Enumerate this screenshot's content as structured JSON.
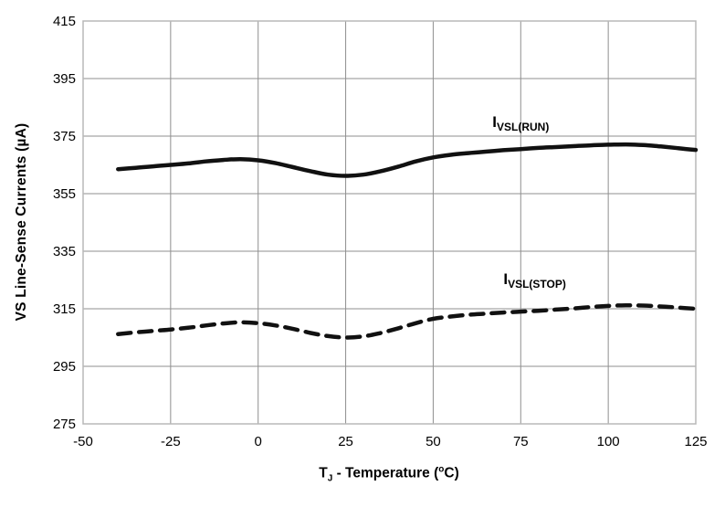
{
  "figure": {
    "background": "#ffffff",
    "grid_color": "#8f8f8f",
    "border_color": "#b8b8b8",
    "line_color": "#111111",
    "text_color": "#000000"
  },
  "chart_data": {
    "type": "line",
    "title": "",
    "xlabel": "TJ - Temperature (°C)",
    "ylabel": "VS Line-Sense Currents (µA)",
    "xlim": [
      -50,
      125
    ],
    "ylim": [
      275,
      415
    ],
    "xticks": [
      -50,
      -25,
      0,
      25,
      50,
      75,
      100,
      125
    ],
    "yticks": [
      275,
      295,
      315,
      335,
      355,
      375,
      395,
      415
    ],
    "grid": true,
    "legend_position": "inline-annotations",
    "x": [
      -40,
      -35,
      -30,
      -25,
      -20,
      -15,
      -10,
      -5,
      0,
      5,
      10,
      15,
      20,
      25,
      30,
      35,
      40,
      45,
      50,
      55,
      60,
      65,
      70,
      75,
      80,
      85,
      90,
      95,
      100,
      105,
      110,
      115,
      120,
      125
    ],
    "series": [
      {
        "name": "IVSL(RUN)",
        "label": {
          "main": "I",
          "sub": "VSL(RUN)"
        },
        "style": "solid",
        "color": "#111111",
        "annotation_pos": {
          "x": 75,
          "y": 379.5
        },
        "values": [
          363.5,
          364,
          364.5,
          365,
          365.5,
          366.2,
          366.7,
          367,
          366.6,
          365.6,
          364.2,
          362.8,
          361.6,
          361.2,
          361.6,
          362.8,
          364.4,
          366.2,
          367.6,
          368.5,
          369.1,
          369.6,
          370.1,
          370.5,
          370.9,
          371.2,
          371.5,
          371.8,
          372,
          372.1,
          371.9,
          371.4,
          370.8,
          370.2
        ]
      },
      {
        "name": "IVSL(STOP)",
        "label": {
          "main": "I",
          "sub": "VSL(STOP)"
        },
        "style": "dashed",
        "color": "#111111",
        "annotation_pos": {
          "x": 79,
          "y": 325
        },
        "values": [
          306.2,
          306.8,
          307.3,
          307.8,
          308.4,
          309.2,
          309.9,
          310.3,
          310,
          309.2,
          308,
          306.6,
          305.5,
          305,
          305.4,
          306.6,
          308.2,
          310,
          311.5,
          312.3,
          312.9,
          313.3,
          313.7,
          314,
          314.3,
          314.7,
          315.1,
          315.6,
          316,
          316.2,
          316.1,
          315.8,
          315.4,
          315
        ]
      }
    ]
  },
  "axis_label_parts": {
    "x_main": "T",
    "x_sub": "J",
    "x_mid": " - Temperature (",
    "x_sup": "o",
    "x_end": "C)"
  }
}
